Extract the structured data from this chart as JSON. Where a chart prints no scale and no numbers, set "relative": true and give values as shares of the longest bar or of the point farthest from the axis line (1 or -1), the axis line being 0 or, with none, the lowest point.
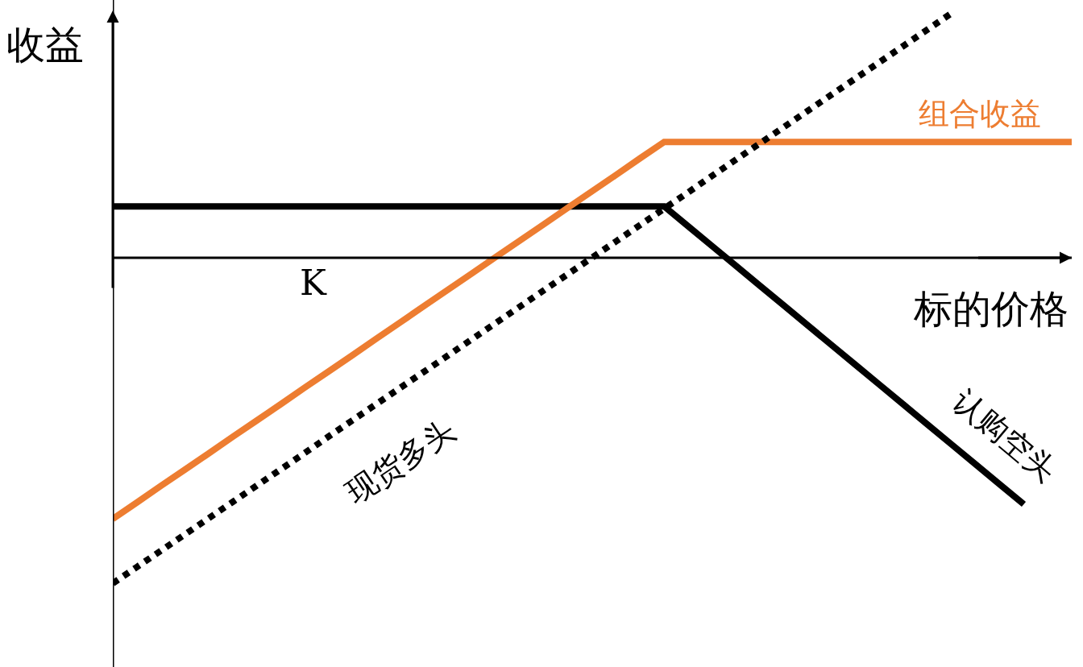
{
  "chart_data": {
    "type": "line",
    "relative": true,
    "ylabel": "收益",
    "xlabel": "标的价格",
    "annotations": [
      "K"
    ],
    "legend": false,
    "marker": "none",
    "categories": [
      null,
      null,
      null,
      null,
      null,
      null,
      null,
      null,
      null,
      null,
      null,
      null,
      null,
      null,
      null,
      null,
      null,
      null,
      null,
      null,
      null,
      null,
      null,
      null,
      null,
      null,
      null,
      null,
      null,
      null,
      null,
      null,
      null,
      null,
      null,
      null,
      null,
      null,
      null,
      null,
      null
    ],
    "series": [
      {
        "name": "认购空头",
        "color": "#000000",
        "line_style": "solid",
        "values": [
          0.158,
          0.158,
          0.158,
          0.158,
          0.158,
          0.158,
          0.158,
          0.158,
          0.158,
          0.158,
          0.158,
          0.158,
          0.158,
          0.158,
          0.158,
          0.158,
          0.158,
          0.158,
          0.158,
          0.158,
          0.158,
          0.158,
          0.158,
          0.158,
          0.097,
          0.036,
          -0.025,
          -0.086,
          -0.147,
          -0.208,
          -0.269,
          -0.33,
          -0.391,
          -0.452,
          -0.513,
          -0.574,
          -0.635,
          -0.696,
          -0.757,
          null,
          null
        ]
      },
      {
        "name": "组合收益",
        "color": "#ed7d31",
        "line_style": "solid",
        "values": [
          -0.802,
          -0.752,
          -0.701,
          -0.651,
          -0.601,
          -0.55,
          -0.5,
          -0.45,
          -0.399,
          -0.349,
          -0.299,
          -0.248,
          -0.198,
          -0.147,
          -0.097,
          -0.047,
          0.004,
          0.054,
          0.104,
          0.155,
          0.205,
          0.255,
          0.306,
          0.356,
          0.356,
          0.356,
          0.356,
          0.356,
          0.356,
          0.356,
          0.356,
          0.356,
          0.356,
          0.356,
          0.356,
          0.356,
          0.356,
          0.356,
          0.356,
          0.356,
          0.356
        ]
      },
      {
        "name": "现货多头",
        "color": "#000000",
        "line_style": "dotted",
        "values": [
          -1,
          -0.95,
          -0.9,
          -0.85,
          -0.8,
          -0.75,
          -0.7,
          -0.65,
          -0.6,
          -0.549,
          -0.499,
          -0.449,
          -0.399,
          -0.349,
          -0.299,
          -0.249,
          -0.199,
          -0.149,
          -0.099,
          -0.049,
          0.001,
          0.051,
          0.101,
          0.151,
          0.201,
          0.252,
          0.302,
          0.352,
          0.402,
          0.452,
          0.502,
          0.552,
          0.602,
          0.652,
          0.702,
          0.752,
          null,
          null,
          null,
          null,
          null
        ]
      }
    ]
  }
}
